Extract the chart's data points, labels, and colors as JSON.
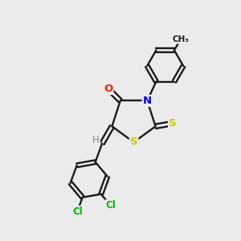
{
  "bg_color": "#ebebeb",
  "bond_color": "#1a1a1a",
  "atom_colors": {
    "O": "#ff2200",
    "N": "#0000ee",
    "S": "#cccc00",
    "Cl": "#00bb00",
    "H": "#888888",
    "C": "#1a1a1a"
  },
  "figsize": [
    3.0,
    3.0
  ],
  "dpi": 100
}
